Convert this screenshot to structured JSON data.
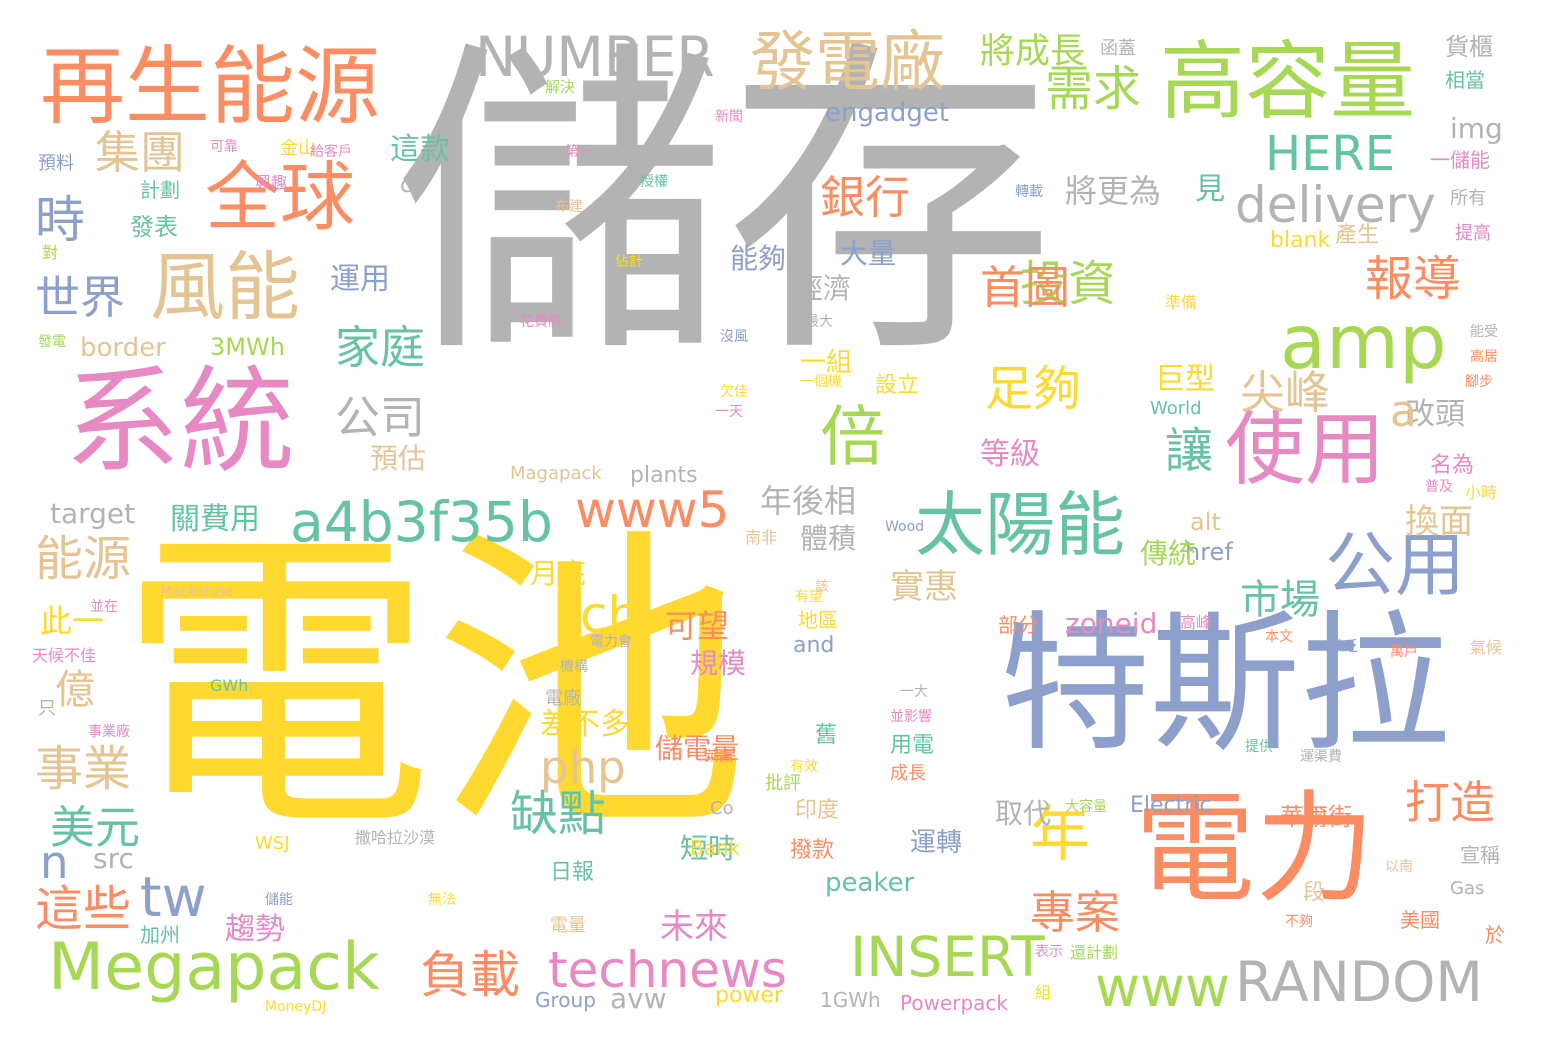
{
  "wordcloud": {
    "palette": {
      "gray": "#b3b3b3",
      "yellow": "#ffd92f",
      "orange": "#fc8d62",
      "blue": "#8da0cb",
      "pink": "#e78ac3",
      "green": "#a6d854",
      "teal": "#66c2a5",
      "tan": "#e5c494"
    },
    "words": [
      "儲存",
      "電池",
      "特斯拉",
      "電力",
      "系統",
      "再生能源",
      "高容量",
      "使用",
      "太陽能",
      "全球",
      "風能",
      "發電廠",
      "amp",
      "倍",
      "公用",
      "Megapack",
      "NUMBER",
      "a4b3f35b",
      "www5",
      "technews",
      "INSERT",
      "RANDOM",
      "www",
      "需求",
      "投資",
      "報導",
      "delivery",
      "HERE",
      "銀行",
      "首圖",
      "時",
      "集團",
      "世界",
      "家庭",
      "公司",
      "足夠",
      "讓",
      "尖峰",
      "年",
      "php",
      "cb",
      "tw",
      "n",
      "能源",
      "事業",
      "美元",
      "這些",
      "負載",
      "專案",
      "缺點",
      "打造",
      "市場",
      "將成長",
      "將更為",
      "engadget",
      "img",
      "公用2",
      "zoneid",
      "href",
      "alt",
      "換面",
      "一組",
      "巨型",
      "改頭",
      "等級",
      "運用",
      "大量",
      "能夠",
      "經濟",
      "border",
      "3MWh",
      "target",
      "關費用",
      "預估",
      "年後相",
      "體積",
      "月底",
      "此一",
      "億",
      "src",
      "可望",
      "規模",
      "差不多",
      "儲電量",
      "實惠",
      "短時",
      "未來",
      "趨勢",
      "加州",
      "avw",
      "power",
      "plants",
      "Magapack",
      "見",
      "a",
      "ck",
      "這款",
      "發表",
      "對",
      "計劃",
      "預料",
      "興趣",
      "金山",
      "給客戶",
      "可靠",
      "解決",
      "Pacific",
      "新聞",
      "第一",
      "不",
      "授權",
      "布建",
      "轉載",
      "函蓋",
      "貨櫃",
      "相當",
      "一儲能",
      "所有",
      "提高",
      "blank",
      "產生",
      "準備",
      "佔計",
      "花費將",
      "沒風",
      "最大",
      "發電",
      "一個機",
      "設立",
      "欠佳",
      "一天",
      "World",
      "名為",
      "小時",
      "普及",
      "高居",
      "腳步",
      "能受",
      "Wood",
      "南非",
      "有望",
      "Mackenzie",
      "地區",
      "and",
      "部分",
      "高峰",
      "本文",
      "缺乏",
      "萬戶",
      "氣候",
      "電力會",
      "機構",
      "電廠",
      "GWh",
      "天候不佳",
      "只",
      "事業廠",
      "一大",
      "並影響",
      "舊",
      "用電",
      "有效",
      "萊諾",
      "提供",
      "運渠費",
      "批評",
      "成長",
      "取代",
      "印度",
      "大容量",
      "Electric",
      "華爾街",
      "宣稱",
      "以南",
      "撥款",
      "日報",
      "運轉",
      "peaker",
      "Co",
      "Bank",
      "WSJ",
      "撒哈拉沙漠",
      "儲能",
      "無法",
      "電量",
      "Gas",
      "段",
      "不夠",
      "美國",
      "表示",
      "還計劃",
      "於",
      "組",
      "Group",
      "1GWh",
      "Powerpack",
      "MoneyDJ",
      "傳統",
      "並在",
      "該"
    ]
  }
}
